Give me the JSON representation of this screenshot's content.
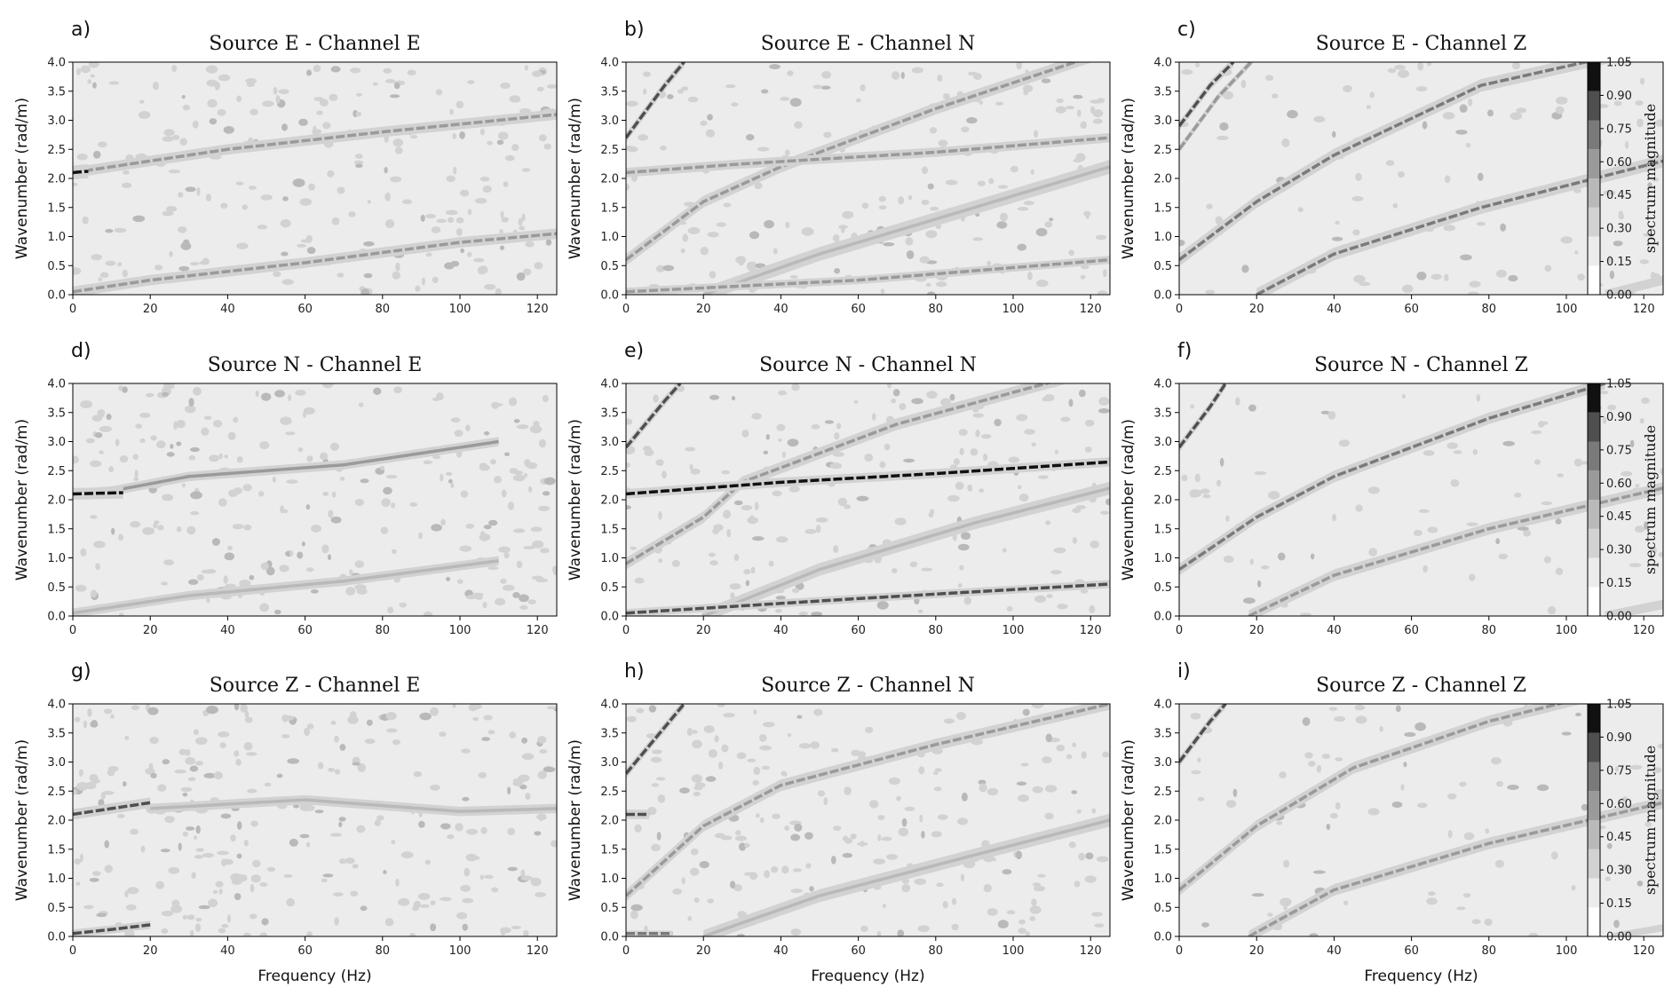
{
  "chart_data": {
    "type": "heatmap",
    "xlim": [
      0,
      125
    ],
    "ylim": [
      0,
      4.0
    ],
    "xticks": [
      "0",
      "20",
      "40",
      "60",
      "80",
      "100",
      "120"
    ],
    "yticks": [
      "0.0",
      "0.5",
      "1.0",
      "1.5",
      "2.0",
      "2.5",
      "3.0",
      "3.5",
      "4.0"
    ],
    "xlabel": "Frequency (Hz)",
    "ylabel": "Wavenumber (rad/m)",
    "colorbar": {
      "label": "spectrum magnitude",
      "ticks": [
        "0.00",
        "0.15",
        "0.30",
        "0.45",
        "0.60",
        "0.75",
        "0.90",
        "1.05"
      ],
      "colors": [
        "#ffffff",
        "#ececec",
        "#d2d2d2",
        "#b9b9b9",
        "#9a9a9a",
        "#7a7a7a",
        "#4f4f4f",
        "#111111"
      ]
    },
    "panels": [
      {
        "label": "a)",
        "title": "Source E - Channel E",
        "noise": 0.55,
        "curves": [
          {
            "points": [
              [
                0,
                2.1
              ],
              [
                10,
                2.2
              ],
              [
                40,
                2.5
              ],
              [
                80,
                2.8
              ],
              [
                125,
                3.1
              ]
            ],
            "w": 0.09,
            "level": 0.55
          },
          {
            "points": [
              [
                0,
                0.05
              ],
              [
                20,
                0.25
              ],
              [
                60,
                0.55
              ],
              [
                100,
                0.9
              ],
              [
                125,
                1.05
              ]
            ],
            "w": 0.09,
            "level": 0.55
          },
          {
            "points": [
              [
                0,
                2.1
              ],
              [
                3,
                2.12
              ]
            ],
            "w": 0.12,
            "level": 1.0,
            "end": 4
          }
        ]
      },
      {
        "label": "b)",
        "title": "Source E - Channel N",
        "noise": 0.45,
        "curves": [
          {
            "points": [
              [
                0,
                2.7
              ],
              [
                10,
                3.6
              ],
              [
                15,
                4.0
              ]
            ],
            "w": 0.08,
            "level": 0.8
          },
          {
            "points": [
              [
                0,
                0.6
              ],
              [
                20,
                1.6
              ],
              [
                40,
                2.2
              ],
              [
                80,
                3.2
              ],
              [
                125,
                4.2
              ]
            ],
            "w": 0.1,
            "level": 0.6
          },
          {
            "points": [
              [
                0,
                2.1
              ],
              [
                30,
                2.25
              ],
              [
                80,
                2.45
              ],
              [
                125,
                2.7
              ]
            ],
            "w": 0.08,
            "level": 0.6
          },
          {
            "points": [
              [
                20,
                0.0
              ],
              [
                50,
                0.7
              ],
              [
                90,
                1.5
              ],
              [
                125,
                2.2
              ]
            ],
            "w": 0.12,
            "level": 0.4
          },
          {
            "points": [
              [
                0,
                0.05
              ],
              [
                60,
                0.25
              ],
              [
                125,
                0.6
              ]
            ],
            "w": 0.07,
            "level": 0.6
          }
        ]
      },
      {
        "label": "c)",
        "title": "Source E - Channel Z",
        "noise": 0.25,
        "curves": [
          {
            "points": [
              [
                0,
                2.9
              ],
              [
                8,
                3.6
              ],
              [
                14,
                4.0
              ]
            ],
            "w": 0.08,
            "level": 0.85
          },
          {
            "points": [
              [
                0,
                2.5
              ],
              [
                10,
                3.4
              ],
              [
                20,
                4.1
              ]
            ],
            "w": 0.06,
            "level": 0.6
          },
          {
            "points": [
              [
                0,
                0.6
              ],
              [
                20,
                1.6
              ],
              [
                40,
                2.4
              ],
              [
                78,
                3.6
              ],
              [
                125,
                4.3
              ]
            ],
            "w": 0.11,
            "level": 0.7
          },
          {
            "points": [
              [
                20,
                0.0
              ],
              [
                40,
                0.7
              ],
              [
                78,
                1.5
              ],
              [
                125,
                2.3
              ]
            ],
            "w": 0.11,
            "level": 0.65
          },
          {
            "points": [
              [
                110,
                0.0
              ],
              [
                125,
                0.25
              ]
            ],
            "w": 0.08,
            "level": 0.3
          }
        ]
      },
      {
        "label": "d)",
        "title": "Source N - Channel E",
        "noise": 0.6,
        "curves": [
          {
            "points": [
              [
                0,
                2.1
              ],
              [
                10,
                2.15
              ],
              [
                30,
                2.4
              ],
              [
                70,
                2.6
              ],
              [
                110,
                3.0
              ]
            ],
            "w": 0.08,
            "level": 0.5
          },
          {
            "points": [
              [
                0,
                0.05
              ],
              [
                30,
                0.35
              ],
              [
                70,
                0.6
              ],
              [
                110,
                0.95
              ]
            ],
            "w": 0.08,
            "level": 0.45
          },
          {
            "points": [
              [
                0,
                2.1
              ],
              [
                12,
                2.12
              ]
            ],
            "w": 0.1,
            "level": 0.95,
            "end": 13
          }
        ]
      },
      {
        "label": "e)",
        "title": "Source N - Channel N",
        "noise": 0.45,
        "curves": [
          {
            "points": [
              [
                0,
                2.9
              ],
              [
                10,
                3.7
              ],
              [
                14,
                4.0
              ]
            ],
            "w": 0.08,
            "level": 0.8
          },
          {
            "points": [
              [
                0,
                0.9
              ],
              [
                20,
                1.7
              ],
              [
                30,
                2.3
              ],
              [
                70,
                3.3
              ],
              [
                125,
                4.3
              ]
            ],
            "w": 0.1,
            "level": 0.6
          },
          {
            "points": [
              [
                0,
                2.1
              ],
              [
                40,
                2.3
              ],
              [
                80,
                2.45
              ],
              [
                125,
                2.65
              ]
            ],
            "w": 0.08,
            "level": 0.95
          },
          {
            "points": [
              [
                20,
                0.0
              ],
              [
                50,
                0.8
              ],
              [
                90,
                1.6
              ],
              [
                125,
                2.2
              ]
            ],
            "w": 0.11,
            "level": 0.4
          },
          {
            "points": [
              [
                0,
                0.05
              ],
              [
                60,
                0.3
              ],
              [
                125,
                0.55
              ]
            ],
            "w": 0.07,
            "level": 0.85
          }
        ]
      },
      {
        "label": "f)",
        "title": "Source N - Channel Z",
        "noise": 0.2,
        "curves": [
          {
            "points": [
              [
                0,
                2.9
              ],
              [
                8,
                3.6
              ],
              [
                12,
                4.0
              ]
            ],
            "w": 0.08,
            "level": 0.85
          },
          {
            "points": [
              [
                0,
                0.8
              ],
              [
                20,
                1.7
              ],
              [
                40,
                2.4
              ],
              [
                80,
                3.4
              ],
              [
                110,
                4.0
              ]
            ],
            "w": 0.1,
            "level": 0.65
          },
          {
            "points": [
              [
                18,
                0.0
              ],
              [
                40,
                0.7
              ],
              [
                80,
                1.5
              ],
              [
                125,
                2.2
              ]
            ],
            "w": 0.1,
            "level": 0.6
          },
          {
            "points": [
              [
                110,
                0.0
              ],
              [
                125,
                0.2
              ]
            ],
            "w": 0.08,
            "level": 0.3
          }
        ]
      },
      {
        "label": "g)",
        "title": "Source Z - Channel E",
        "noise": 0.65,
        "curves": [
          {
            "points": [
              [
                0,
                2.1
              ],
              [
                10,
                2.2
              ],
              [
                20,
                2.3
              ]
            ],
            "w": 0.09,
            "level": 0.85,
            "end": 20
          },
          {
            "points": [
              [
                20,
                2.2
              ],
              [
                60,
                2.35
              ],
              [
                100,
                2.15
              ],
              [
                125,
                2.2
              ]
            ],
            "w": 0.08,
            "level": 0.4
          },
          {
            "points": [
              [
                0,
                0.05
              ],
              [
                10,
                0.12
              ],
              [
                20,
                0.2
              ]
            ],
            "w": 0.07,
            "level": 0.8,
            "end": 20
          }
        ]
      },
      {
        "label": "h)",
        "title": "Source Z - Channel N",
        "noise": 0.5,
        "curves": [
          {
            "points": [
              [
                0,
                2.8
              ],
              [
                10,
                3.6
              ],
              [
                15,
                4.0
              ]
            ],
            "w": 0.08,
            "level": 0.85
          },
          {
            "points": [
              [
                0,
                0.7
              ],
              [
                20,
                1.9
              ],
              [
                40,
                2.6
              ],
              [
                80,
                3.3
              ],
              [
                125,
                4.0
              ]
            ],
            "w": 0.1,
            "level": 0.55
          },
          {
            "points": [
              [
                0,
                2.1
              ],
              [
                5,
                2.1
              ]
            ],
            "w": 0.08,
            "level": 0.85,
            "end": 6
          },
          {
            "points": [
              [
                20,
                0.0
              ],
              [
                50,
                0.7
              ],
              [
                90,
                1.4
              ],
              [
                125,
                2.0
              ]
            ],
            "w": 0.11,
            "level": 0.45
          },
          {
            "points": [
              [
                0,
                0.05
              ],
              [
                10,
                0.05
              ]
            ],
            "w": 0.05,
            "level": 0.7,
            "end": 12
          }
        ]
      },
      {
        "label": "i)",
        "title": "Source Z - Channel Z",
        "noise": 0.2,
        "curves": [
          {
            "points": [
              [
                0,
                3.0
              ],
              [
                8,
                3.7
              ],
              [
                12,
                4.0
              ]
            ],
            "w": 0.08,
            "level": 0.85
          },
          {
            "points": [
              [
                0,
                0.8
              ],
              [
                20,
                1.9
              ],
              [
                45,
                2.9
              ],
              [
                80,
                3.7
              ],
              [
                110,
                4.2
              ]
            ],
            "w": 0.1,
            "level": 0.6
          },
          {
            "points": [
              [
                18,
                0.0
              ],
              [
                40,
                0.8
              ],
              [
                80,
                1.6
              ],
              [
                125,
                2.3
              ]
            ],
            "w": 0.1,
            "level": 0.55
          },
          {
            "points": [
              [
                112,
                0.0
              ],
              [
                125,
                0.15
              ]
            ],
            "w": 0.06,
            "level": 0.3
          }
        ]
      }
    ]
  }
}
